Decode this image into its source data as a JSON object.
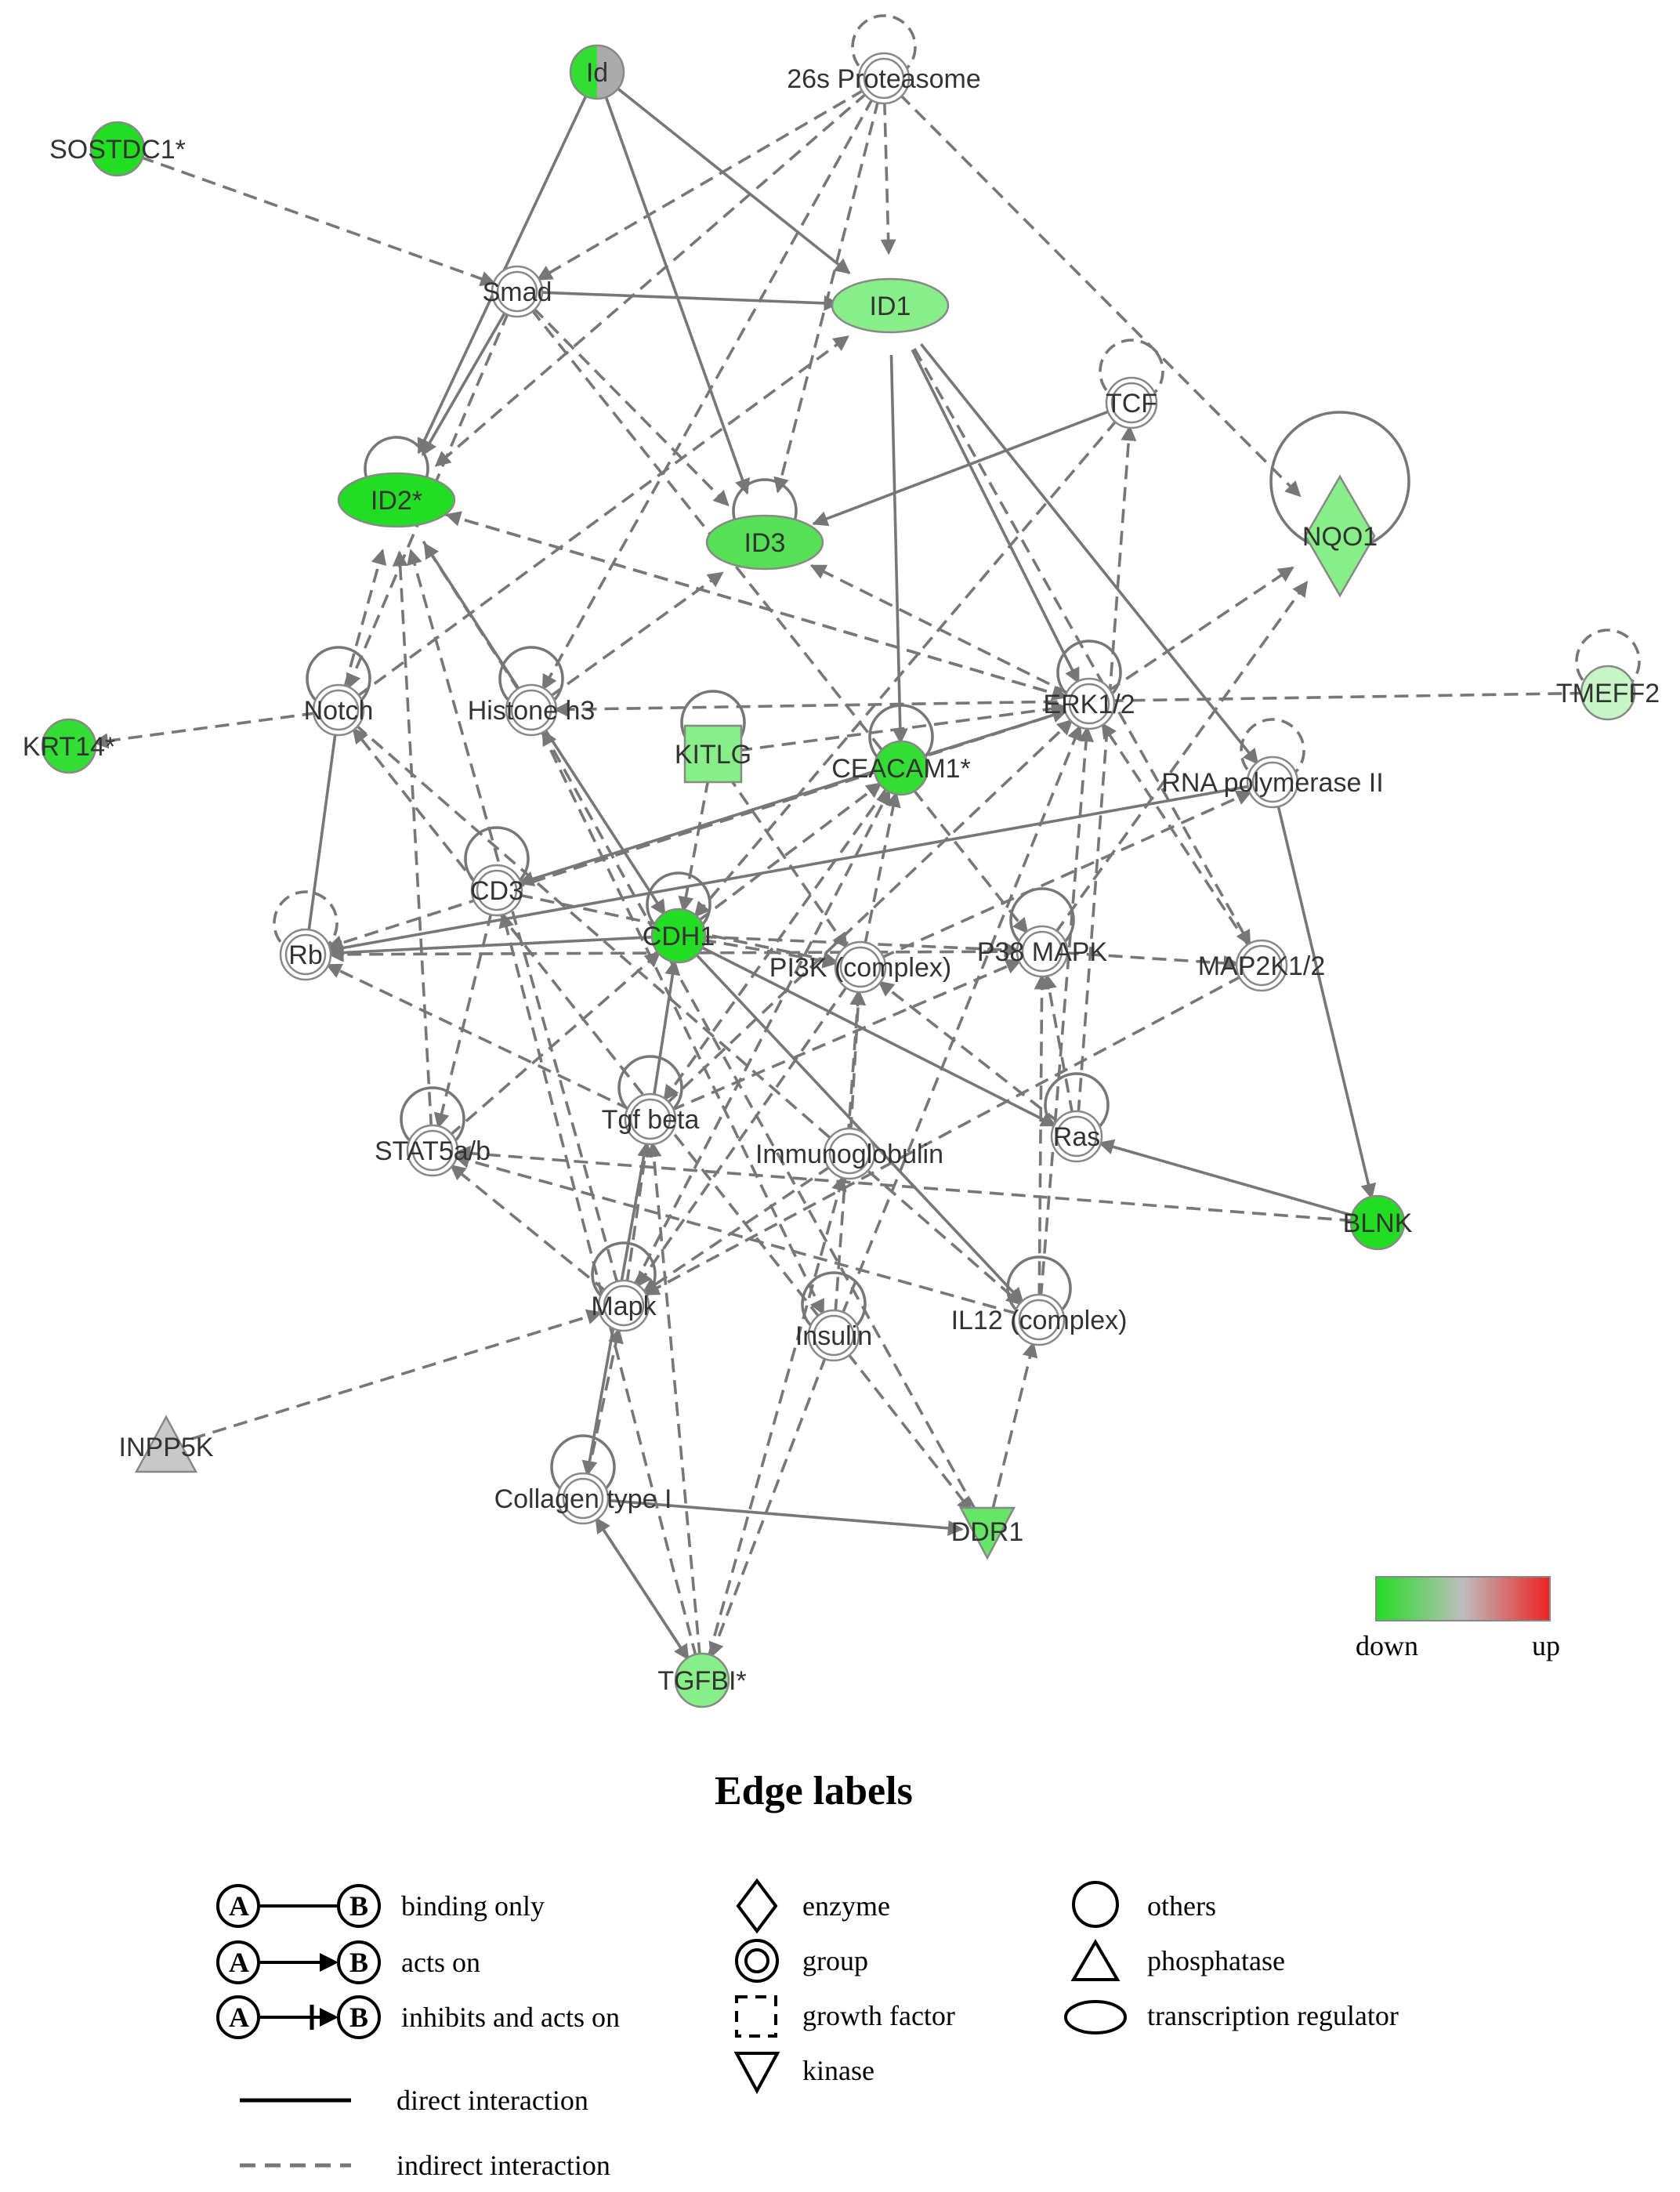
{
  "colors": {
    "down": "#22dd22",
    "mid": "#bdbdbd",
    "up": "#ee2222",
    "edge": "#777777",
    "node_stroke": "#888888",
    "light_green": "#8ef08e",
    "medium_green": "#55e055",
    "pale_green": "#c6f5c6"
  },
  "nodes": [
    {
      "id": "Id",
      "label": "Id",
      "shape": "circle-half",
      "fill": "#33dd33"
    },
    {
      "id": "proteasome",
      "label": "26s Proteasome",
      "shape": "group",
      "fill": "#ffffff"
    },
    {
      "id": "SOSTDC1",
      "label": "SOSTDC1*",
      "shape": "circle",
      "fill": "#22dd22"
    },
    {
      "id": "Smad",
      "label": "Smad",
      "shape": "group",
      "fill": "#ffffff"
    },
    {
      "id": "ID1",
      "label": "ID1",
      "shape": "ellipse",
      "fill": "#88ee88"
    },
    {
      "id": "TCF",
      "label": "TCF",
      "shape": "group",
      "fill": "#ffffff"
    },
    {
      "id": "ID2",
      "label": "ID2*",
      "shape": "ellipse",
      "fill": "#22dd22"
    },
    {
      "id": "ID3",
      "label": "ID3",
      "shape": "ellipse",
      "fill": "#55e055"
    },
    {
      "id": "NQO1",
      "label": "NQO1",
      "shape": "diamond",
      "fill": "#88ee88"
    },
    {
      "id": "TMEFF2",
      "label": "TMEFF2",
      "shape": "circle",
      "fill": "#c6f5c6"
    },
    {
      "id": "KRT14",
      "label": "KRT14*",
      "shape": "circle",
      "fill": "#33dd33"
    },
    {
      "id": "Notch",
      "label": "Notch",
      "shape": "group",
      "fill": "#ffffff"
    },
    {
      "id": "HistoneH3",
      "label": "Histone h3",
      "shape": "group",
      "fill": "#ffffff"
    },
    {
      "id": "KITLG",
      "label": "KITLG",
      "shape": "square",
      "fill": "#88ee88"
    },
    {
      "id": "CEACAM1",
      "label": "CEACAM1*",
      "shape": "circle",
      "fill": "#33dd33"
    },
    {
      "id": "ERK12",
      "label": "ERK1/2",
      "shape": "group",
      "fill": "#ffffff"
    },
    {
      "id": "RNAPolII",
      "label": "RNA polymerase II",
      "shape": "group",
      "fill": "#ffffff"
    },
    {
      "id": "CD3",
      "label": "CD3",
      "shape": "group",
      "fill": "#ffffff"
    },
    {
      "id": "Rb",
      "label": "Rb",
      "shape": "group",
      "fill": "#ffffff"
    },
    {
      "id": "CDH1",
      "label": "CDH1",
      "shape": "circle",
      "fill": "#22dd22"
    },
    {
      "id": "PI3K",
      "label": "PI3K (complex)",
      "shape": "group",
      "fill": "#ffffff"
    },
    {
      "id": "P38MAPK",
      "label": "P38 MAPK",
      "shape": "group",
      "fill": "#ffffff"
    },
    {
      "id": "MAP2K12",
      "label": "MAP2K1/2",
      "shape": "group",
      "fill": "#ffffff"
    },
    {
      "id": "STAT5ab",
      "label": "STAT5a/b",
      "shape": "group",
      "fill": "#ffffff"
    },
    {
      "id": "TgfBeta",
      "label": "Tgf beta",
      "shape": "group",
      "fill": "#ffffff"
    },
    {
      "id": "Immunoglobulin",
      "label": "Immunoglobulin",
      "shape": "group",
      "fill": "#ffffff"
    },
    {
      "id": "Ras",
      "label": "Ras",
      "shape": "group",
      "fill": "#ffffff"
    },
    {
      "id": "BLNK",
      "label": "BLNK",
      "shape": "circle",
      "fill": "#22dd22"
    },
    {
      "id": "Mapk",
      "label": "Mapk",
      "shape": "group",
      "fill": "#ffffff"
    },
    {
      "id": "Insulin",
      "label": "Insulin",
      "shape": "group",
      "fill": "#ffffff"
    },
    {
      "id": "IL12",
      "label": "IL12 (complex)",
      "shape": "group",
      "fill": "#ffffff"
    },
    {
      "id": "INPP5K",
      "label": "INPP5K",
      "shape": "triangle",
      "fill": "#c8c8c8"
    },
    {
      "id": "Collagen",
      "label": "Collagen type I",
      "shape": "group",
      "fill": "#ffffff"
    },
    {
      "id": "DDR1",
      "label": "DDR1",
      "shape": "triangle-down",
      "fill": "#66e666"
    },
    {
      "id": "TGFBI",
      "label": "TGFBI*",
      "shape": "circle",
      "fill": "#88ee88"
    }
  ],
  "edges": [
    [
      "SOSTDC1",
      "Smad",
      "dashed",
      "arrow"
    ],
    [
      "Id",
      "ID2",
      "solid",
      "arrow"
    ],
    [
      "Id",
      "ID1",
      "solid",
      "arrow"
    ],
    [
      "Id",
      "ID3",
      "solid",
      "arrow"
    ],
    [
      "proteasome",
      "Smad",
      "dashed",
      "arrow"
    ],
    [
      "proteasome",
      "ID1",
      "dashed",
      "arrow"
    ],
    [
      "proteasome",
      "ID2",
      "dashed",
      "arrow"
    ],
    [
      "proteasome",
      "ID3",
      "dashed",
      "arrow"
    ],
    [
      "proteasome",
      "NQO1",
      "dashed",
      "arrow"
    ],
    [
      "proteasome",
      "HistoneH3",
      "dashed",
      "arrow"
    ],
    [
      "Smad",
      "ID1",
      "solid",
      "arrow"
    ],
    [
      "Smad",
      "ID2",
      "solid",
      "arrow"
    ],
    [
      "Smad",
      "ID3",
      "dashed",
      "arrow"
    ],
    [
      "Smad",
      "Notch",
      "dashed",
      "arrow"
    ],
    [
      "ID1",
      "CEACAM1",
      "solid",
      "arrow"
    ],
    [
      "ID1",
      "ERK12",
      "solid",
      "arrow"
    ],
    [
      "ID1",
      "RNAPolII",
      "solid",
      "arrow"
    ],
    [
      "ID1",
      "MAP2K12",
      "dashed",
      "arrow"
    ],
    [
      "TCF",
      "ID3",
      "solid",
      "arrow"
    ],
    [
      "TCF",
      "CDH1",
      "dashed",
      "arrow"
    ],
    [
      "ID2",
      "CDH1",
      "solid",
      "arrow"
    ],
    [
      "ID2",
      "ERK12",
      "dashed",
      "arrow"
    ],
    [
      "Notch",
      "ID2",
      "dashed",
      "arrow"
    ],
    [
      "Notch",
      "Rb",
      "solid",
      "inhibit"
    ],
    [
      "Notch",
      "KRT14",
      "dashed",
      "arrow"
    ],
    [
      "Notch",
      "ID1",
      "dashed",
      "arrow"
    ],
    [
      "HistoneH3",
      "ID3",
      "dashed",
      "arrow"
    ],
    [
      "HistoneH3",
      "ID2",
      "dashed",
      "arrow"
    ],
    [
      "KITLG",
      "ERK12",
      "dashed",
      "arrow"
    ],
    [
      "KITLG",
      "PI3K",
      "dashed",
      "arrow"
    ],
    [
      "KITLG",
      "CDH1",
      "dashed",
      "arrow"
    ],
    [
      "ERK12",
      "ID3",
      "dashed",
      "arrow"
    ],
    [
      "ERK12",
      "NQO1",
      "dashed",
      "arrow"
    ],
    [
      "ERK12",
      "CD3",
      "dashed",
      "arrow"
    ],
    [
      "ERK12",
      "Rb",
      "dashed",
      "arrow"
    ],
    [
      "TMEFF2",
      "HistoneH3",
      "dashed",
      "arrow"
    ],
    [
      "RNAPolII",
      "BLNK",
      "solid",
      "arrow"
    ],
    [
      "RNAPolII",
      "Rb",
      "solid",
      "arrow"
    ],
    [
      "CD3",
      "ERK12",
      "dashed",
      "arrow"
    ],
    [
      "CD3",
      "PI3K",
      "dashed",
      "arrow"
    ],
    [
      "CD3",
      "STAT5ab",
      "dashed",
      "arrow"
    ],
    [
      "CDH1",
      "Rb",
      "solid",
      "arrow"
    ],
    [
      "CDH1",
      "PI3K",
      "dashed",
      "arrow"
    ],
    [
      "CDH1",
      "P38MAPK",
      "dashed",
      "arrow"
    ],
    [
      "CDH1",
      "Ras",
      "solid",
      "arrow"
    ],
    [
      "CDH1",
      "IL12",
      "solid",
      "arrow"
    ],
    [
      "CDH1",
      "CEACAM1",
      "dashed",
      "arrow"
    ],
    [
      "P38MAPK",
      "NQO1",
      "dashed",
      "arrow"
    ],
    [
      "P38MAPK",
      "MAP2K12",
      "dashed",
      "arrow"
    ],
    [
      "P38MAPK",
      "Rb",
      "dashed",
      "arrow"
    ],
    [
      "MAP2K12",
      "ERK12",
      "dashed",
      "arrow"
    ],
    [
      "MAP2K12",
      "Mapk",
      "dashed",
      "arrow"
    ],
    [
      "STAT5ab",
      "CDH1",
      "dashed",
      "arrow"
    ],
    [
      "STAT5ab",
      "ID2",
      "dashed",
      "arrow"
    ],
    [
      "TgfBeta",
      "CDH1",
      "solid",
      "arrow"
    ],
    [
      "TgfBeta",
      "Collagen",
      "solid",
      "arrow"
    ],
    [
      "TgfBeta",
      "ERK12",
      "dashed",
      "arrow"
    ],
    [
      "TgfBeta",
      "Rb",
      "dashed",
      "arrow"
    ],
    [
      "TgfBeta",
      "P38MAPK",
      "dashed",
      "arrow"
    ],
    [
      "Immunoglobulin",
      "PI3K",
      "dashed",
      "arrow"
    ],
    [
      "Immunoglobulin",
      "Mapk",
      "dashed",
      "arrow"
    ],
    [
      "Ras",
      "PI3K",
      "dashed",
      "arrow"
    ],
    [
      "Ras",
      "P38MAPK",
      "dashed",
      "arrow"
    ],
    [
      "Ras",
      "TCF",
      "dashed",
      "arrow"
    ],
    [
      "BLNK",
      "Ras",
      "solid",
      "arrow"
    ],
    [
      "BLNK",
      "STAT5ab",
      "dashed",
      "arrow"
    ],
    [
      "Mapk",
      "ID2",
      "dashed",
      "arrow"
    ],
    [
      "Mapk",
      "STAT5ab",
      "dashed",
      "arrow"
    ],
    [
      "Mapk",
      "CEACAM1",
      "dashed",
      "arrow"
    ],
    [
      "Mapk",
      "TgfBeta",
      "dashed",
      "arrow"
    ],
    [
      "Insulin",
      "PI3K",
      "dashed",
      "arrow"
    ],
    [
      "Insulin",
      "ERK12",
      "dashed",
      "arrow"
    ],
    [
      "Insulin",
      "Notch",
      "dashed",
      "arrow"
    ],
    [
      "IL12",
      "STAT5ab",
      "dashed",
      "arrow"
    ],
    [
      "IL12",
      "P38MAPK",
      "dashed",
      "arrow"
    ],
    [
      "IL12",
      "ERK12",
      "dashed",
      "arrow"
    ],
    [
      "INPP5K",
      "Mapk",
      "dashed",
      "arrow"
    ],
    [
      "Collagen",
      "DDR1",
      "solid",
      "arrow"
    ],
    [
      "Collagen",
      "TGFBI",
      "solid",
      "arrow"
    ],
    [
      "Collagen",
      "Mapk",
      "dashed",
      "arrow"
    ],
    [
      "DDR1",
      "IL12",
      "dashed",
      "arrow"
    ],
    [
      "DDR1",
      "HistoneH3",
      "dashed",
      "arrow"
    ],
    [
      "TGFBI",
      "TgfBeta",
      "dashed",
      "arrow"
    ],
    [
      "TGFBI",
      "Collagen",
      "dashed",
      "arrow"
    ],
    [
      "TGFBI",
      "CD3",
      "dashed",
      "arrow"
    ],
    [
      "TGFBI",
      "Immunoglobulin",
      "dashed",
      "arrow"
    ],
    [
      "PI3K",
      "RNAPolII",
      "dashed",
      "arrow"
    ],
    [
      "PI3K",
      "CEACAM1",
      "dashed",
      "arrow"
    ],
    [
      "PI3K",
      "Mapk",
      "dashed",
      "arrow"
    ],
    [
      "Insulin",
      "DDR1",
      "dashed",
      "arrow"
    ],
    [
      "Insulin",
      "TGFBI",
      "dashed",
      "arrow"
    ],
    [
      "HistoneH3",
      "Insulin",
      "dashed",
      "arrow"
    ],
    [
      "Notch",
      "IL12",
      "dashed",
      "arrow"
    ],
    [
      "CEACAM1",
      "TgfBeta",
      "dashed",
      "arrow"
    ],
    [
      "Smad",
      "P38MAPK",
      "dashed",
      "arrow"
    ],
    [
      "ERK12",
      "ID2",
      "dashed",
      "arrow"
    ]
  ],
  "self_loops": [
    "proteasome",
    "TCF",
    "ID2",
    "ID3",
    "NQO1",
    "TMEFF2",
    "Notch",
    "HistoneH3",
    "KITLG",
    "CEACAM1",
    "ERK12",
    "RNAPolII",
    "CD3",
    "Rb",
    "CDH1",
    "P38MAPK",
    "STAT5ab",
    "TgfBeta",
    "Ras",
    "Mapk",
    "Insulin",
    "IL12",
    "Collagen"
  ],
  "color_scale": {
    "down_label": "down",
    "up_label": "up"
  },
  "legend": {
    "title": "Edge labels",
    "node_a": "A",
    "node_b": "B",
    "edge_types": [
      {
        "label": "binding only"
      },
      {
        "label": "acts on"
      },
      {
        "label": "inhibits and acts on"
      }
    ],
    "node_types_col1": [
      {
        "label": "enzyme"
      },
      {
        "label": "group"
      },
      {
        "label": "growth factor"
      },
      {
        "label": "kinase"
      }
    ],
    "node_types_col2": [
      {
        "label": "others"
      },
      {
        "label": "phosphatase"
      },
      {
        "label": "transcription regulator"
      }
    ],
    "line_types": [
      {
        "label": "direct interaction"
      },
      {
        "label": "indirect interaction"
      }
    ]
  }
}
